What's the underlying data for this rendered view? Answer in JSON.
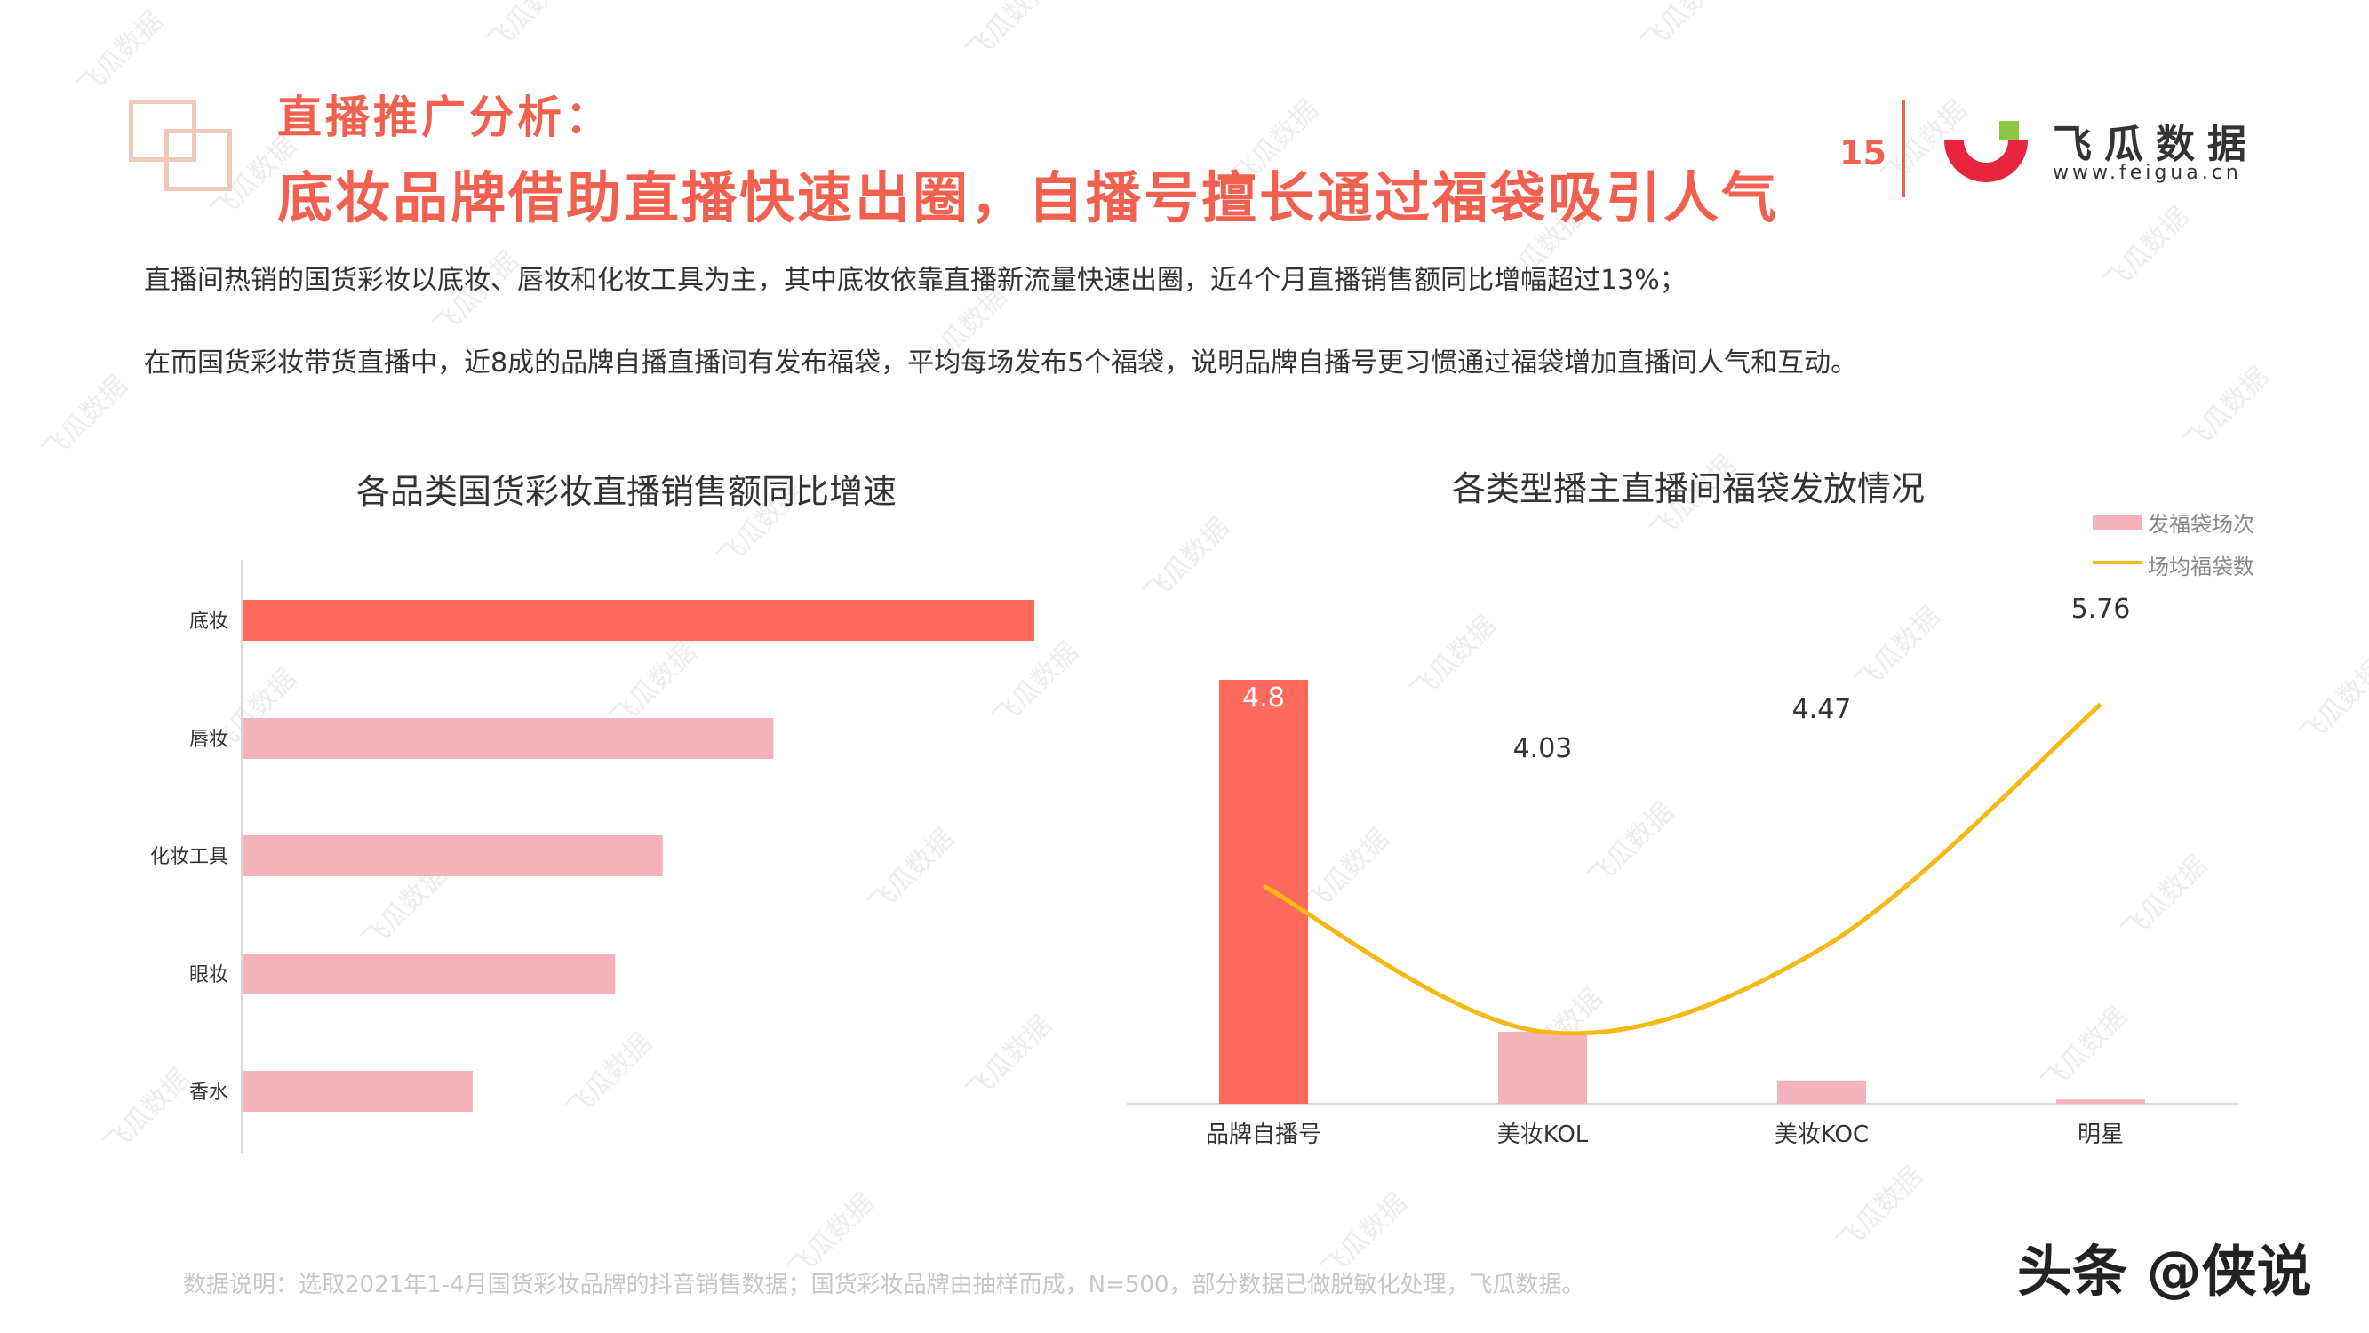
{
  "header": {
    "section_label": "直播推广分析：",
    "headline": "底妆品牌借助直播快速出圈，自播号擅长通过福袋吸引人气",
    "page_number": "15",
    "brand_name": "飞瓜数据",
    "brand_url": "www.feigua.cn"
  },
  "summary": {
    "line1": "直播间热销的国货彩妆以底妆、唇妆和化妆工具为主，其中底妆依靠直播新流量快速出圈，近4个月直播销售额同比增幅超过13%；",
    "line2": "在而国货彩妆带货直播中，近8成的品牌自播直播间有发布福袋，平均每场发布5个福袋，说明品牌自播号更习惯通过福袋增加直播间人气和互动。"
  },
  "chart_data": [
    {
      "type": "bar",
      "orientation": "horizontal",
      "title": "各品类国货彩妆直播销售额同比增速",
      "categories": [
        "底妆",
        "唇妆",
        "化妆工具",
        "眼妆",
        "香水"
      ],
      "values": [
        100,
        67,
        53,
        47,
        29
      ],
      "colors": [
        "#ff6a5c",
        "#f4b3bb",
        "#f4b3bb",
        "#f4b3bb",
        "#f4b3bb"
      ],
      "xlim": [
        0,
        100
      ]
    },
    {
      "type": "bar",
      "title": "各类型播主直播间福袋发放情况",
      "categories": [
        "品牌自播号",
        "美妆KOL",
        "美妆KOC",
        "明星"
      ],
      "series": [
        {
          "name": "发福袋场次",
          "type": "bar",
          "values": [
            100,
            17,
            5.5,
            1
          ],
          "colors": [
            "#ff6a5c",
            "#f4b3bb",
            "#f4b3bb",
            "#f4b3bb"
          ]
        },
        {
          "name": "场均福袋数",
          "type": "line",
          "values": [
            4.8,
            4.03,
            4.47,
            5.76
          ],
          "labels": [
            "4.8",
            "4.03",
            "4.47",
            "5.76"
          ],
          "color": "#f5b915"
        }
      ],
      "legend": "top-right"
    }
  ],
  "footnote": "数据说明：选取2021年1-4月国货彩妆品牌的抖音销售数据；国货彩妆品牌由抽样而成，N=500，部分数据已做脱敏化处理，飞瓜数据。",
  "credit": "头条 @侠说",
  "watermark": "飞瓜数据"
}
